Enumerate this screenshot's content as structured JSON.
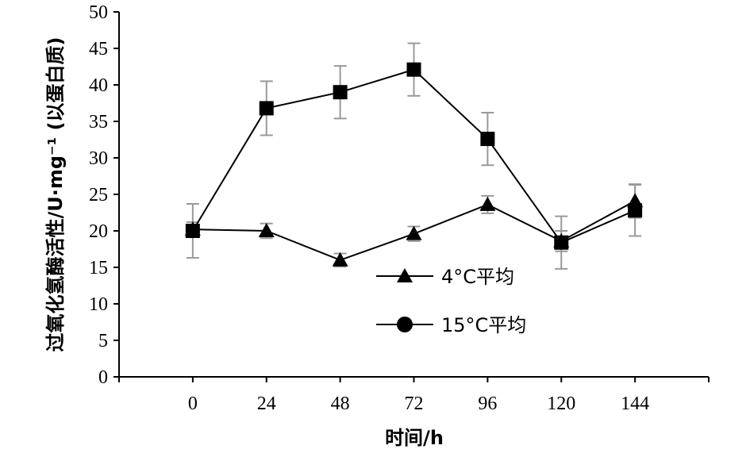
{
  "chart_data": {
    "type": "line",
    "xlabel": "时间/h",
    "ylabel": "过氧化氢酶活性/U·mg⁻¹ (以蛋白质)",
    "x": [
      0,
      24,
      48,
      72,
      96,
      120,
      144
    ],
    "xlim": [
      -24,
      168
    ],
    "ylim": [
      0,
      50
    ],
    "yticks": [
      0,
      5,
      10,
      15,
      20,
      25,
      30,
      35,
      40,
      45,
      50
    ],
    "grid": false,
    "legend_position": "center-right",
    "series": [
      {
        "name": "4°C平均",
        "marker": "triangle",
        "values": [
          20.2,
          20.0,
          16.0,
          19.6,
          23.6,
          18.6,
          24.1
        ],
        "errors": [
          1.0,
          1.0,
          0.9,
          1.0,
          1.2,
          1.4,
          2.3
        ]
      },
      {
        "name": "15°C平均",
        "marker": "square",
        "values": [
          20.0,
          36.8,
          39.0,
          42.1,
          32.6,
          18.4,
          22.8
        ],
        "errors": [
          3.7,
          3.7,
          3.6,
          3.6,
          3.6,
          3.6,
          3.5
        ]
      }
    ],
    "colors": {
      "line": "#000000",
      "error_bar": "#999999"
    }
  }
}
